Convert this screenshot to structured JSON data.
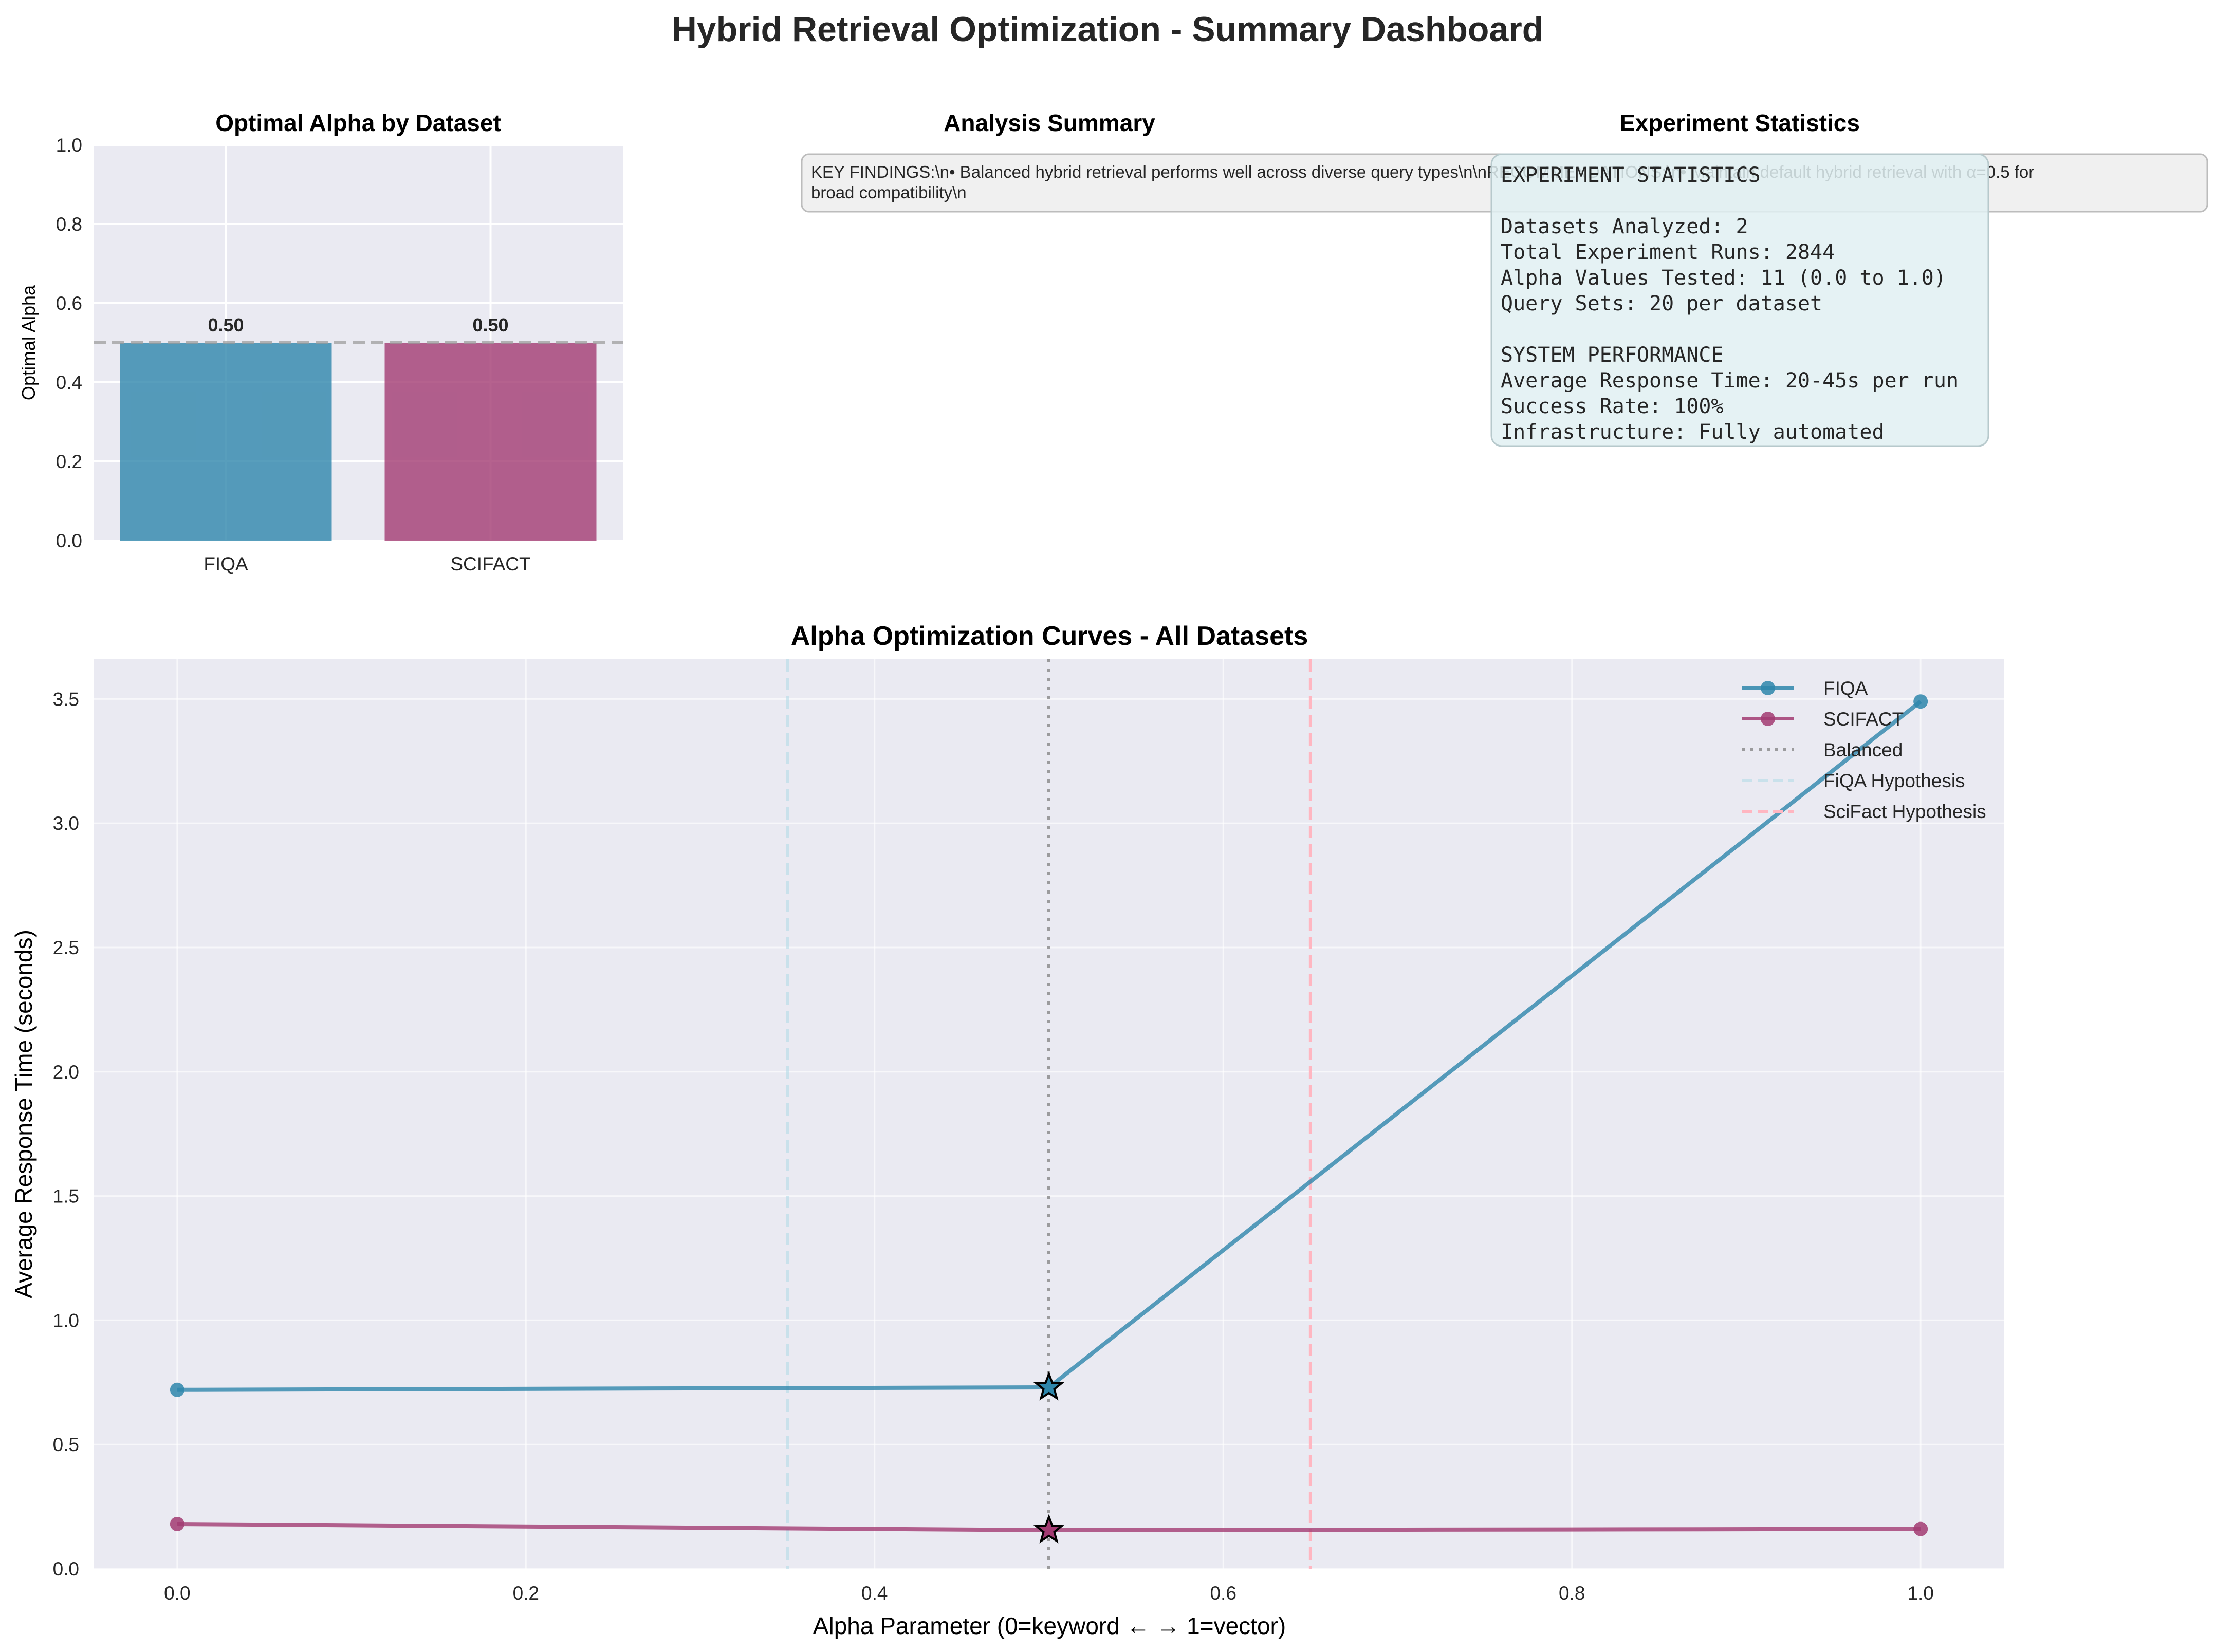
{
  "page_title": "Hybrid Retrieval Optimization - Summary Dashboard",
  "panels": {
    "bar": {
      "title": "Optimal Alpha by Dataset",
      "ylabel": "Optimal Alpha"
    },
    "summary": {
      "title": "Analysis Summary",
      "text_lines": [
        "KEY FINDINGS:\\n• Balanced hybrid retrieval performs well across diverse query types\\n\\nRECOMMENDATIONS:\\n• Maintain default hybrid retrieval with α=0.5 for",
        "broad compatibility\\n"
      ]
    },
    "stats": {
      "title": "Experiment Statistics",
      "lines": [
        "EXPERIMENT STATISTICS",
        "",
        "Datasets Analyzed: 2",
        "Total Experiment Runs: 2844",
        "Alpha Values Tested: 11 (0.0 to 1.0)",
        "Query Sets: 20 per dataset",
        "",
        "SYSTEM PERFORMANCE",
        "Average Response Time: 20-45s per run",
        "Success Rate: 100%",
        "Infrastructure: Fully automated"
      ]
    },
    "curves": {
      "title": "Alpha Optimization Curves - All Datasets",
      "xlabel": "Alpha Parameter (0=keyword ← → 1=vector)",
      "ylabel": "Average Response Time (seconds)"
    }
  },
  "colors": {
    "fiqa": "#2E86AB",
    "scifact": "#A23B72",
    "balanced": "#808080",
    "fiqa_hypothesis": "#ADD8E6",
    "scifact_hypothesis": "#FFB6C1",
    "plot_bg": "#EAEAF2",
    "summary_box": "#F0F0F0",
    "stats_box": "#E0F0F2"
  },
  "chart_data": [
    {
      "type": "bar",
      "title": "Optimal Alpha by Dataset",
      "xlabel": "",
      "ylabel": "Optimal Alpha",
      "categories": [
        "FIQA",
        "SCIFACT"
      ],
      "values": [
        0.5,
        0.5
      ],
      "value_labels": [
        "0.50",
        "0.50"
      ],
      "reference_line": 0.5,
      "ylim": [
        0,
        1
      ],
      "yticks": [
        "0.0",
        "0.2",
        "0.4",
        "0.6",
        "0.8",
        "1.0"
      ],
      "grid": true
    },
    {
      "type": "line",
      "title": "Alpha Optimization Curves - All Datasets",
      "xlabel": "Alpha Parameter (0=keyword ← → 1=vector)",
      "ylabel": "Average Response Time (seconds)",
      "xlim": [
        -0.048,
        1.048
      ],
      "ylim": [
        0,
        3.66
      ],
      "xticks": [
        "0.0",
        "0.2",
        "0.4",
        "0.6",
        "0.8",
        "1.0"
      ],
      "yticks": [
        "0.0",
        "0.5",
        "1.0",
        "1.5",
        "2.0",
        "2.5",
        "3.0",
        "3.5"
      ],
      "series": [
        {
          "name": "FIQA",
          "x": [
            0.0,
            0.5,
            1.0
          ],
          "y": [
            0.72,
            0.73,
            3.49
          ],
          "best_x": 0.5
        },
        {
          "name": "SCIFACT",
          "x": [
            0.0,
            0.5,
            1.0
          ],
          "y": [
            0.18,
            0.155,
            0.16
          ],
          "best_x": 0.5
        }
      ],
      "vlines": [
        {
          "name": "Balanced",
          "x": 0.5,
          "style": "dotted"
        },
        {
          "name": "FiQA Hypothesis",
          "x": 0.35,
          "style": "dashed"
        },
        {
          "name": "SciFact Hypothesis",
          "x": 0.65,
          "style": "dashed"
        }
      ],
      "legend_position": "upper right",
      "grid": true
    }
  ]
}
